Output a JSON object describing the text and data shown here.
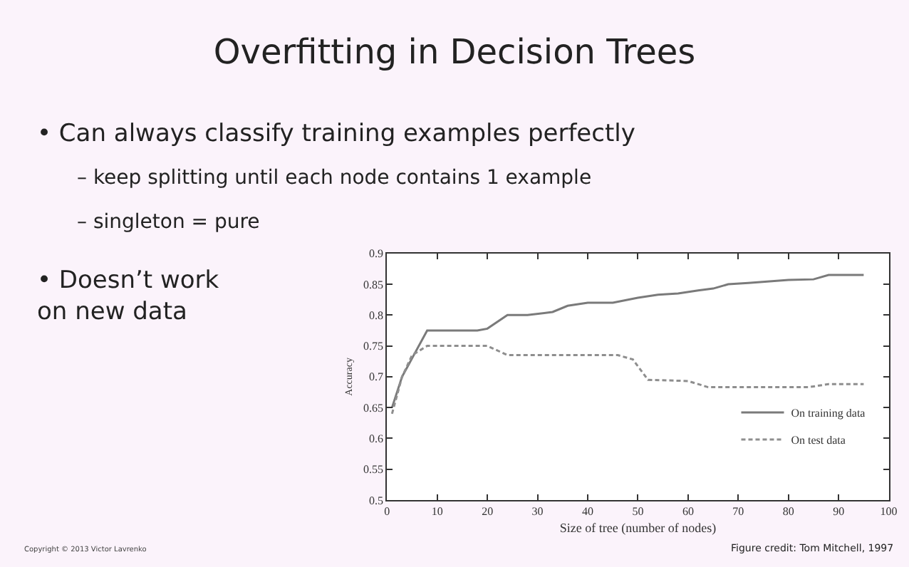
{
  "chart_data": {
    "type": "line",
    "title": "Overfitting in Decision Trees",
    "annotations": [
      "• Can always classify training examples perfectly",
      "– keep splitting until each node contains 1 example",
      "– singleton = pure",
      "• Doesn’t work\non new data",
      "Copyright © 2013 Victor Lavrenko",
      "Figure credit: Tom Mitchell, 1997"
    ],
    "xlabel": "Size of tree (number of nodes)",
    "ylabel": "Accuracy",
    "xlim": [
      0,
      100
    ],
    "xticks": [
      0,
      10,
      20,
      30,
      40,
      50,
      60,
      70,
      80,
      90,
      100
    ],
    "ylim": [
      0.5,
      0.9
    ],
    "yticks": [
      0.5,
      0.55,
      0.6,
      0.65,
      0.7,
      0.75,
      0.8,
      0.85,
      0.9
    ],
    "legend": "right",
    "series": [
      {
        "name": "On training data",
        "color": "#7a7a7a",
        "line_style": "solid",
        "x": [
          1,
          3,
          5,
          8,
          18,
          20,
          24,
          28,
          33,
          36,
          40,
          45,
          50,
          54,
          58,
          62,
          65,
          68,
          72,
          80,
          85,
          88,
          95
        ],
        "values": [
          0.65,
          0.7,
          0.73,
          0.775,
          0.775,
          0.778,
          0.8,
          0.8,
          0.805,
          0.815,
          0.82,
          0.82,
          0.828,
          0.833,
          0.835,
          0.84,
          0.843,
          0.85,
          0.852,
          0.857,
          0.858,
          0.865,
          0.865
        ]
      },
      {
        "name": "On test data",
        "color": "#8e8e8e",
        "line_style": "dashed",
        "x": [
          1,
          3,
          5,
          8,
          20,
          24,
          46,
          49,
          52,
          60,
          64,
          84,
          88,
          95
        ],
        "values": [
          0.64,
          0.7,
          0.735,
          0.75,
          0.75,
          0.735,
          0.735,
          0.728,
          0.695,
          0.693,
          0.683,
          0.683,
          0.688,
          0.688
        ]
      }
    ]
  }
}
